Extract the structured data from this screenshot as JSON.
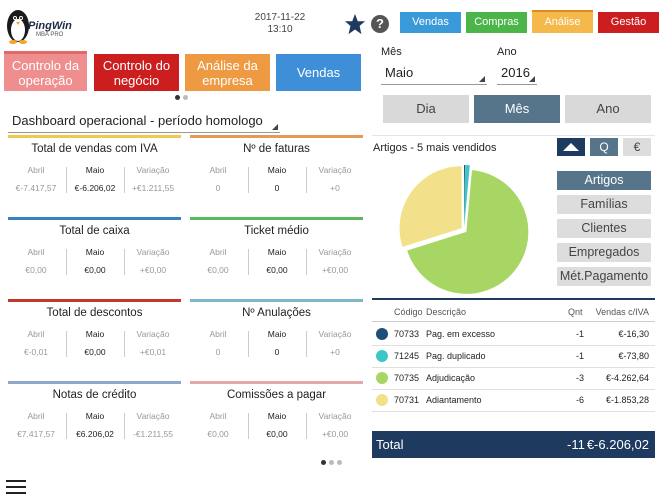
{
  "app": {
    "logo_text": "PingWin",
    "logo_sub": "MBA PRO"
  },
  "header": {
    "date": "2017-11-22",
    "time": "13:10"
  },
  "top_buttons": [
    {
      "label": "Vendas",
      "color": "#3a9ad9"
    },
    {
      "label": "Compras",
      "color": "#4cb54a"
    },
    {
      "label": "Análise",
      "color": "#f5b84b"
    },
    {
      "label": "Gestão",
      "color": "#cc1e1e"
    }
  ],
  "nav_tiles": [
    {
      "label": "Controlo da\noperação",
      "color": "#ef8e8e"
    },
    {
      "label": "Controlo do\nnegócio",
      "color": "#cc1e1e"
    },
    {
      "label": "Análise da\nempresa",
      "color": "#ee9a43"
    },
    {
      "label": "Vendas",
      "color": "#3f8fd8"
    }
  ],
  "dashboard": {
    "select_value": "Dashboard operacional - período homologo"
  },
  "period": {
    "mes_label": "Mês",
    "mes_value": "Maio",
    "ano_label": "Ano",
    "ano_value": "2016",
    "tabs": [
      "Dia",
      "Mês",
      "Ano"
    ],
    "active_tab": "Mês"
  },
  "col_labels": {
    "prev": "Abril",
    "cur": "Maio",
    "var": "Variação"
  },
  "kpis": [
    {
      "title": "Total de vendas com IVA",
      "prev": "€-7.417,57",
      "cur": "€-6.206,02",
      "var": "+€1.211,55",
      "color": "#f2c94c"
    },
    {
      "title": "Nº de faturas",
      "prev": "0",
      "cur": "0",
      "var": "+0",
      "color": "#e69a55"
    },
    {
      "title": "Total de caixa",
      "prev": "€0,00",
      "cur": "€0,00",
      "var": "+€0,00",
      "color": "#3a7fc0"
    },
    {
      "title": "Ticket médio",
      "prev": "€0,00",
      "cur": "€0,00",
      "var": "+€0,00",
      "color": "#5cb85c"
    },
    {
      "title": "Total de descontos",
      "prev": "€-0,01",
      "cur": "€0,00",
      "var": "+€0,01",
      "color": "#c0392b"
    },
    {
      "title": "Nº Anulações",
      "prev": "0",
      "cur": "0",
      "var": "+0",
      "color": "#7fb7c9"
    },
    {
      "title": "Notas de crédito",
      "prev": "€7.417,57",
      "cur": "€6.206,02",
      "var": "-€1.211,55",
      "color": "#8fa7c9"
    },
    {
      "title": "Comissões a pagar",
      "prev": "€0,00",
      "cur": "€0,00",
      "var": "+€0,00",
      "color": "#e2a9a9"
    }
  ],
  "top5": {
    "title": "Artigos - 5 mais vendidos",
    "view_buttons": [
      "Q",
      "€"
    ],
    "categories": [
      "Artigos",
      "Famílias",
      "Clientes",
      "Empregados",
      "Mét.Pagamento"
    ],
    "active_category": "Artigos",
    "columns": {
      "code": "Código",
      "desc": "Descrição",
      "qnt": "Qnt",
      "sales": "Vendas c/IVA"
    },
    "rows": [
      {
        "code": "70733",
        "desc": "Pag. em excesso",
        "qnt": "-1",
        "sales": "€-16,30",
        "color": "#1f4e79"
      },
      {
        "code": "71245",
        "desc": "Pag. duplicado",
        "qnt": "-1",
        "sales": "€-73,80",
        "color": "#3ec6c6"
      },
      {
        "code": "70735",
        "desc": "Adjudicação",
        "qnt": "-3",
        "sales": "€-4.262,64",
        "color": "#a8d664"
      },
      {
        "code": "70731",
        "desc": "Adiantamento",
        "qnt": "-6",
        "sales": "€-1.853,28",
        "color": "#f3e08a"
      }
    ],
    "total_label": "Total",
    "total_qnt": "-11",
    "total_sales": "€-6.206,02"
  },
  "chart_data": {
    "type": "pie",
    "categories": [
      "70733",
      "71245",
      "70735",
      "70731"
    ],
    "values": [
      -16.3,
      -73.8,
      -4262.64,
      -1853.28
    ],
    "colors": [
      "#1f4e79",
      "#3ec6c6",
      "#a8d664",
      "#f3e08a"
    ],
    "title": "Artigos - 5 mais vendidos"
  }
}
